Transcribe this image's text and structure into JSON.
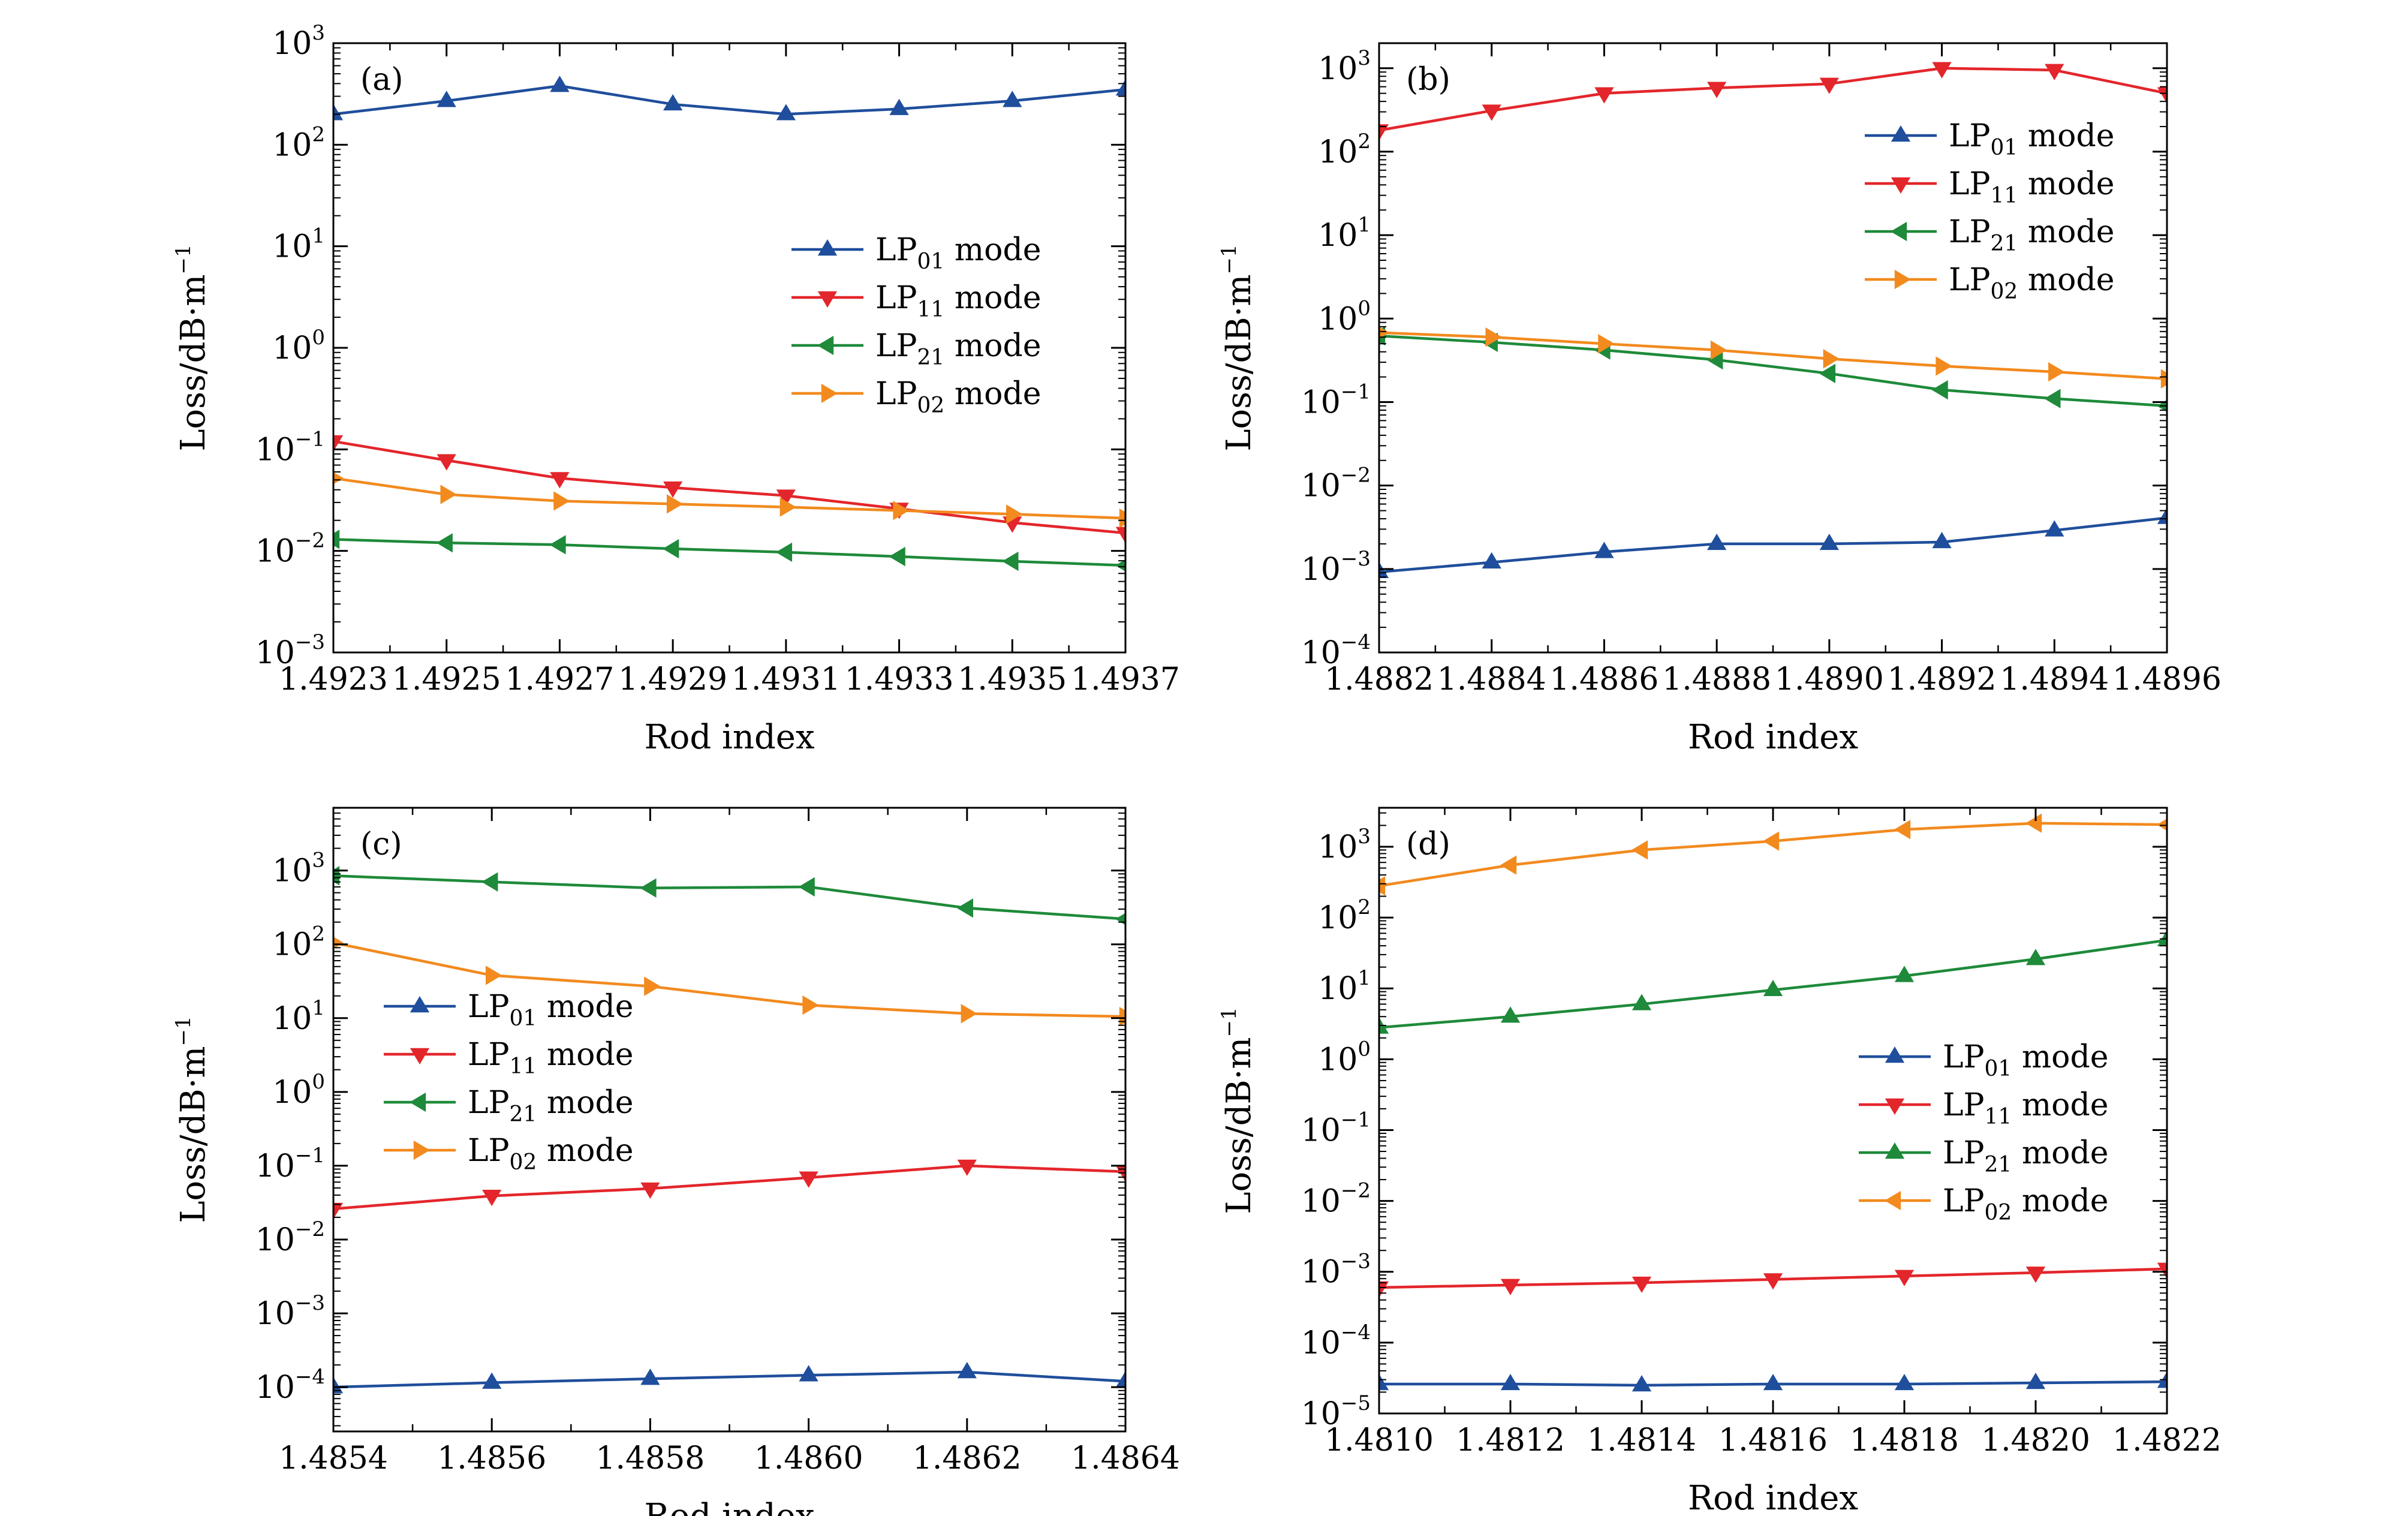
{
  "chart_data": [
    {
      "panel": "(a)",
      "type": "line",
      "xlabel": "Rod index",
      "ylabel": "Loss/dB·m⁻¹",
      "yscale": "log",
      "xlim": [
        1.4923,
        1.4937
      ],
      "ylim_exp": [
        -3,
        3
      ],
      "xticks": [
        "1.4923",
        "1.4925",
        "1.4927",
        "1.4929",
        "1.4931",
        "1.4933",
        "1.4935",
        "1.4937"
      ],
      "yticks_exp": [
        -3,
        -2,
        -1,
        0,
        1,
        2,
        3
      ],
      "legend_position": "center-right",
      "x": [
        1.4923,
        1.4925,
        1.4927,
        1.4929,
        1.4931,
        1.4933,
        1.4935,
        1.4937
      ],
      "series": [
        {
          "base": "LP",
          "sub": "01",
          "suffix": " mode",
          "color": "#1f4e9c",
          "marker": "triangle-up",
          "values": [
            200,
            270,
            380,
            250,
            200,
            225,
            270,
            350
          ]
        },
        {
          "base": "LP",
          "sub": "11",
          "suffix": " mode",
          "color": "#e3262b",
          "marker": "triangle-down",
          "values": [
            0.12,
            0.078,
            0.052,
            0.042,
            0.035,
            0.026,
            0.019,
            0.015
          ]
        },
        {
          "base": "LP",
          "sub": "21",
          "suffix": " mode",
          "color": "#1e8a3a",
          "marker": "triangle-left",
          "values": [
            0.013,
            0.012,
            0.0115,
            0.0105,
            0.0097,
            0.0088,
            0.0079,
            0.0072
          ]
        },
        {
          "base": "LP",
          "sub": "02",
          "suffix": " mode",
          "color": "#f28a1e",
          "marker": "triangle-right",
          "values": [
            0.052,
            0.036,
            0.031,
            0.029,
            0.027,
            0.025,
            0.023,
            0.021
          ]
        }
      ]
    },
    {
      "panel": "(b)",
      "type": "line",
      "xlabel": "Rod index",
      "ylabel": "Loss/dB·m⁻¹",
      "yscale": "log",
      "xlim": [
        1.4882,
        1.4896
      ],
      "ylim_exp": [
        -4,
        3.3
      ],
      "xticks": [
        "1.4882",
        "1.4884",
        "1.4886",
        "1.4888",
        "1.4890",
        "1.4892",
        "1.4894",
        "1.4896"
      ],
      "yticks_exp": [
        -4,
        -3,
        -2,
        -1,
        0,
        1,
        2,
        3
      ],
      "legend_position": "upper-right",
      "x": [
        1.4882,
        1.4884,
        1.4886,
        1.4888,
        1.489,
        1.4892,
        1.4894,
        1.4896
      ],
      "series": [
        {
          "base": "LP",
          "sub": "01",
          "suffix": " mode",
          "color": "#1f4e9c",
          "marker": "triangle-up",
          "values": [
            0.00092,
            0.0012,
            0.0016,
            0.002,
            0.002,
            0.0021,
            0.0029,
            0.0041
          ]
        },
        {
          "base": "LP",
          "sub": "11",
          "suffix": " mode",
          "color": "#e3262b",
          "marker": "triangle-down",
          "values": [
            180,
            310,
            500,
            580,
            650,
            1000,
            950,
            500
          ]
        },
        {
          "base": "LP",
          "sub": "21",
          "suffix": " mode",
          "color": "#1e8a3a",
          "marker": "triangle-left",
          "values": [
            0.62,
            0.52,
            0.42,
            0.32,
            0.22,
            0.14,
            0.11,
            0.09
          ]
        },
        {
          "base": "LP",
          "sub": "02",
          "suffix": " mode",
          "color": "#f28a1e",
          "marker": "triangle-right",
          "values": [
            0.68,
            0.6,
            0.5,
            0.42,
            0.33,
            0.27,
            0.23,
            0.19
          ]
        }
      ]
    },
    {
      "panel": "(c)",
      "type": "line",
      "xlabel": "Rod index",
      "ylabel": "Loss/dB·m⁻¹",
      "yscale": "log",
      "xlim": [
        1.4854,
        1.4864
      ],
      "ylim_exp": [
        -4.6,
        3.85
      ],
      "xticks": [
        "1.4854",
        "1.4856",
        "1.4858",
        "1.4860",
        "1.4862",
        "1.4864"
      ],
      "yticks_exp": [
        -4,
        -3,
        -2,
        -1,
        0,
        1,
        2,
        3
      ],
      "legend_position": "center-left",
      "x": [
        1.4854,
        1.4856,
        1.4858,
        1.486,
        1.4862,
        1.4864
      ],
      "series": [
        {
          "base": "LP",
          "sub": "01",
          "suffix": " mode",
          "color": "#1f4e9c",
          "marker": "triangle-up",
          "values": [
            0.0001,
            0.000115,
            0.00013,
            0.000145,
            0.00016,
            0.00012
          ]
        },
        {
          "base": "LP",
          "sub": "11",
          "suffix": " mode",
          "color": "#e3262b",
          "marker": "triangle-down",
          "values": [
            0.026,
            0.039,
            0.049,
            0.069,
            0.1,
            0.083
          ]
        },
        {
          "base": "LP",
          "sub": "21",
          "suffix": " mode",
          "color": "#1e8a3a",
          "marker": "triangle-left",
          "values": [
            850,
            700,
            580,
            600,
            310,
            220
          ]
        },
        {
          "base": "LP",
          "sub": "02",
          "suffix": " mode",
          "color": "#f28a1e",
          "marker": "triangle-right",
          "values": [
            105,
            38,
            27,
            15,
            11.5,
            10.5
          ]
        }
      ]
    },
    {
      "panel": "(d)",
      "type": "line",
      "xlabel": "Rod index",
      "ylabel": "Loss/dB·m⁻¹",
      "yscale": "log",
      "xlim": [
        1.481,
        1.4822
      ],
      "ylim_exp": [
        -5,
        3.55
      ],
      "xticks": [
        "1.4810",
        "1.4812",
        "1.4814",
        "1.4816",
        "1.4818",
        "1.4820",
        "1.4822"
      ],
      "yticks_exp": [
        -5,
        -4,
        -3,
        -2,
        -1,
        0,
        1,
        2,
        3
      ],
      "legend_position": "center-right",
      "x": [
        1.481,
        1.4812,
        1.4814,
        1.4816,
        1.4818,
        1.482,
        1.4822
      ],
      "series": [
        {
          "base": "LP",
          "sub": "01",
          "suffix": " mode",
          "color": "#1f4e9c",
          "marker": "triangle-up",
          "values": [
            2.6e-05,
            2.6e-05,
            2.5e-05,
            2.6e-05,
            2.6e-05,
            2.7e-05,
            2.8e-05
          ]
        },
        {
          "base": "LP",
          "sub": "11",
          "suffix": " mode",
          "color": "#e3262b",
          "marker": "triangle-down",
          "values": [
            0.0006,
            0.00065,
            0.0007,
            0.00078,
            0.00087,
            0.00097,
            0.0011
          ]
        },
        {
          "base": "LP",
          "sub": "21",
          "suffix": " mode",
          "color": "#1e8a3a",
          "marker": "triangle-up",
          "values": [
            2.8,
            4,
            6,
            9.5,
            15,
            26,
            48
          ]
        },
        {
          "base": "LP",
          "sub": "02",
          "suffix": " mode",
          "color": "#f28a1e",
          "marker": "triangle-left",
          "values": [
            280,
            550,
            900,
            1200,
            1750,
            2150,
            2050
          ]
        }
      ]
    }
  ]
}
